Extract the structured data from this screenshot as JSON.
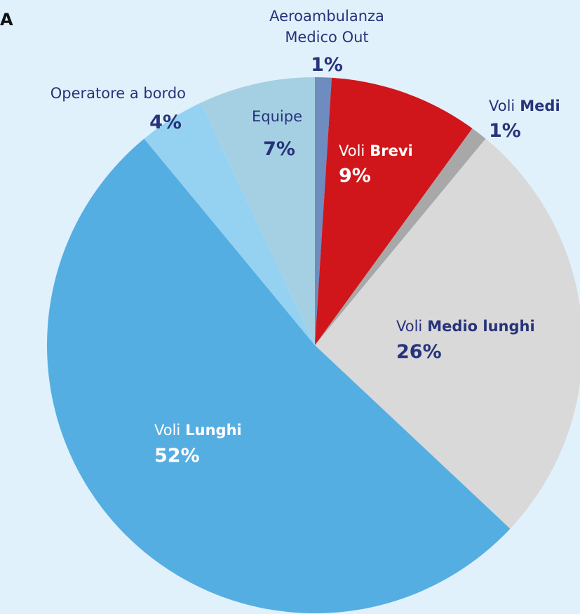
{
  "chart_data": {
    "type": "pie",
    "title": "A",
    "categories": [
      {
        "lines": [
          "Aeroambulanza",
          "Medico Out"
        ]
      },
      {
        "lines": [
          "Voli"
        ],
        "strong": "Brevi"
      },
      {
        "lines": [
          "Voli"
        ],
        "strong": "Medi"
      },
      {
        "lines": [
          "Voli"
        ],
        "strong": "Medio lunghi"
      },
      {
        "lines": [
          "Voli"
        ],
        "strong": "Lunghi"
      },
      {
        "lines": [
          "Operatore a bordo"
        ]
      },
      {
        "lines": [
          "Equipe"
        ]
      }
    ],
    "values": [
      1,
      9,
      1,
      26,
      52,
      4,
      7
    ],
    "value_labels": [
      "1%",
      "9%",
      "1%",
      "26%",
      "52%",
      "4%",
      "7%"
    ],
    "colors": [
      "#6e8cc0",
      "#d0161b",
      "#a8a8a8",
      "#d9d9d9",
      "#55aee2",
      "#95d2f2",
      "#a5d0e3"
    ]
  }
}
